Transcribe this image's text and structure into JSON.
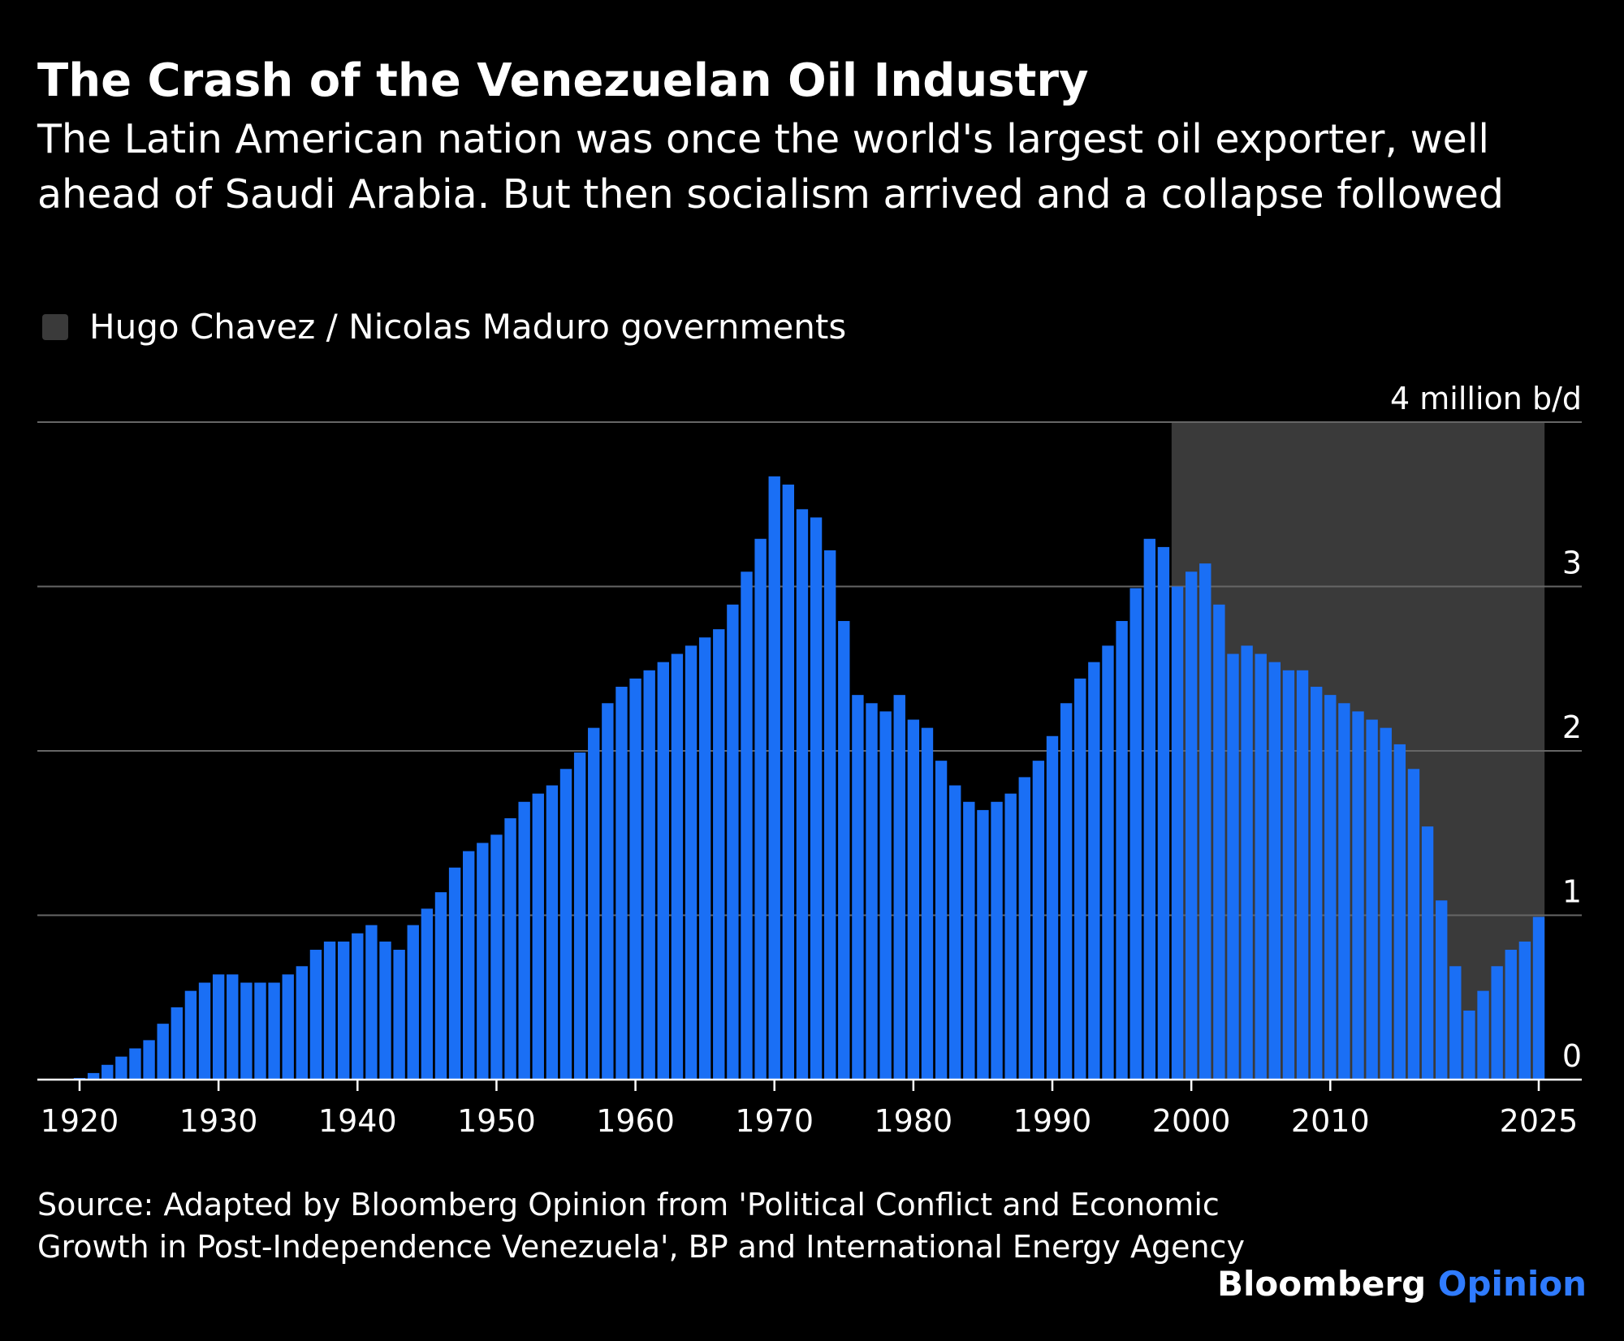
{
  "header": {
    "title": "The Crash of the Venezuelan Oil Industry",
    "subtitle": "The Latin American nation was once the world's largest oil exporter, well ahead of Saudi Arabia. But then socialism arrived and a collapse followed"
  },
  "legend": {
    "label": "Hugo Chavez / Nicolas Maduro governments",
    "swatch_color": "#3a3a3a"
  },
  "colors": {
    "background": "#000000",
    "bar": "#1a6ff5",
    "shade": "#3a3a3a",
    "grid": "#666666",
    "text": "#ffffff",
    "brand_accent": "#2f7bff"
  },
  "chart_data": {
    "type": "bar",
    "title": "The Crash of the Venezuelan Oil Industry",
    "unit_label": "4 million b/d",
    "ylabel": "million barrels per day",
    "xlabel": "",
    "ylim": [
      0,
      4
    ],
    "xlim": [
      1917,
      2027
    ],
    "y_ticks": [
      0,
      1,
      2,
      3,
      4
    ],
    "y_tick_labels": [
      "0",
      "1",
      "2",
      "3",
      "4 million b/d"
    ],
    "x_ticks": [
      1920,
      1930,
      1940,
      1950,
      1960,
      1970,
      1980,
      1990,
      2000,
      2010,
      2025
    ],
    "x_tick_labels": [
      "1920",
      "1930",
      "1940",
      "1950",
      "1960",
      "1970",
      "1980",
      "1990",
      "2000",
      "2010",
      "2025"
    ],
    "grid": true,
    "highlight_period": {
      "label": "Hugo Chavez / Nicolas Maduro governments",
      "start": 1999,
      "end": 2025
    },
    "years": [
      1920,
      1921,
      1922,
      1923,
      1924,
      1925,
      1926,
      1927,
      1928,
      1929,
      1930,
      1931,
      1932,
      1933,
      1934,
      1935,
      1936,
      1937,
      1938,
      1939,
      1940,
      1941,
      1942,
      1943,
      1944,
      1945,
      1946,
      1947,
      1948,
      1949,
      1950,
      1951,
      1952,
      1953,
      1954,
      1955,
      1956,
      1957,
      1958,
      1959,
      1960,
      1961,
      1962,
      1963,
      1964,
      1965,
      1966,
      1967,
      1968,
      1969,
      1970,
      1971,
      1972,
      1973,
      1974,
      1975,
      1976,
      1977,
      1978,
      1979,
      1980,
      1981,
      1982,
      1983,
      1984,
      1985,
      1986,
      1987,
      1988,
      1989,
      1990,
      1991,
      1992,
      1993,
      1994,
      1995,
      1996,
      1997,
      1998,
      1999,
      2000,
      2001,
      2002,
      2003,
      2004,
      2005,
      2006,
      2007,
      2008,
      2009,
      2010,
      2011,
      2012,
      2013,
      2014,
      2015,
      2016,
      2017,
      2018,
      2019,
      2020,
      2021,
      2022,
      2023,
      2024,
      2025
    ],
    "values": [
      0.01,
      0.04,
      0.09,
      0.14,
      0.19,
      0.24,
      0.34,
      0.44,
      0.54,
      0.59,
      0.64,
      0.64,
      0.59,
      0.59,
      0.59,
      0.64,
      0.69,
      0.79,
      0.84,
      0.84,
      0.89,
      0.94,
      0.84,
      0.79,
      0.94,
      1.04,
      1.14,
      1.29,
      1.39,
      1.44,
      1.49,
      1.59,
      1.69,
      1.74,
      1.79,
      1.89,
      1.99,
      2.14,
      2.29,
      2.39,
      2.44,
      2.49,
      2.54,
      2.59,
      2.64,
      2.69,
      2.74,
      2.89,
      3.09,
      3.29,
      3.67,
      3.62,
      3.47,
      3.42,
      3.22,
      2.79,
      2.34,
      2.29,
      2.24,
      2.34,
      2.19,
      2.14,
      1.94,
      1.79,
      1.69,
      1.64,
      1.69,
      1.74,
      1.84,
      1.94,
      2.09,
      2.29,
      2.44,
      2.54,
      2.64,
      2.79,
      2.99,
      3.29,
      3.24,
      3.0,
      3.09,
      3.14,
      2.89,
      2.59,
      2.64,
      2.59,
      2.54,
      2.49,
      2.49,
      2.39,
      2.34,
      2.29,
      2.24,
      2.19,
      2.14,
      2.04,
      1.89,
      1.54,
      1.09,
      0.69,
      0.42,
      0.54,
      0.69,
      0.79,
      0.84,
      0.99
    ]
  },
  "footer": {
    "source": "Source: Adapted by Bloomberg Opinion from 'Political Conflict and Economic Growth in Post-Independence Venezuela', BP and International Energy Agency",
    "brand_name": "Bloomberg",
    "brand_suffix": "Opinion"
  }
}
